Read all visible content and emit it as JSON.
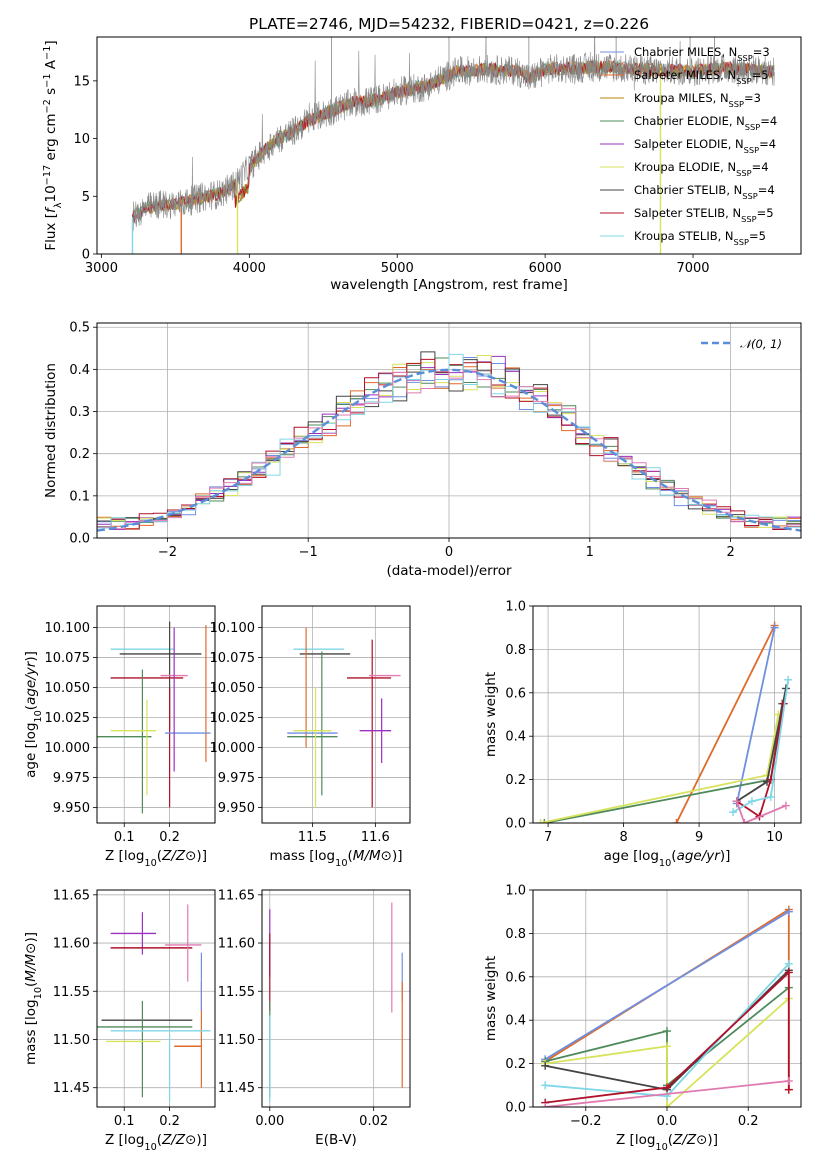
{
  "figure": {
    "title": "PLATE=2746, MJD=54232, FIBERID=0421, z=0.226"
  },
  "colors": {
    "Chabrier MILES": "#6f8fe0",
    "Salpeter MILES": "#e06a2a",
    "Kroupa MILES": "#b8860b",
    "Chabrier ELODIE": "#4f8a5a",
    "Salpeter ELODIE": "#9b30c0",
    "Kroupa ELODIE": "#d7e35a",
    "Chabrier STELIB": "#444444",
    "Salpeter STELIB": "#b0102a",
    "Kroupa STELIB": "#7fd6e6",
    "pink": "#e07ab0",
    "data": "#888888",
    "gaussian": "#5b8ed8"
  },
  "chart_data": [
    {
      "id": "spectrum",
      "type": "line",
      "title": "PLATE=2746, MJD=54232, FIBERID=0421, z=0.226",
      "xlabel": "wavelength [Angstrom, rest frame]",
      "ylabel": "Flux [f_λ 10^-17 erg cm^-2 s^-1 A^-1]",
      "xlim": [
        2970,
        7730
      ],
      "ylim": [
        0,
        18.8
      ],
      "xticks": [
        3000,
        4000,
        5000,
        6000,
        7000
      ],
      "yticks": [
        0,
        5,
        10,
        15
      ],
      "grid": false,
      "legend_position": "right",
      "legend": [
        {
          "label": "Chabrier MILES, N",
          "sub": "SSP",
          "sup": "=3",
          "color": "Chabrier MILES"
        },
        {
          "label": "Salpeter MILES, N",
          "sub": "SSP",
          "sup": "=5",
          "color": "Salpeter MILES"
        },
        {
          "label": "Kroupa MILES, N",
          "sub": "SSP",
          "sup": "=3",
          "color": "Kroupa MILES"
        },
        {
          "label": "Chabrier ELODIE, N",
          "sub": "SSP",
          "sup": "=4",
          "color": "Chabrier ELODIE"
        },
        {
          "label": "Salpeter ELODIE, N",
          "sub": "SSP",
          "sup": "=4",
          "color": "Salpeter ELODIE"
        },
        {
          "label": "Kroupa ELODIE, N",
          "sub": "SSP",
          "sup": "=4",
          "color": "Kroupa ELODIE"
        },
        {
          "label": "Chabrier STELIB, N",
          "sub": "SSP",
          "sup": "=4",
          "color": "Chabrier STELIB"
        },
        {
          "label": "Salpeter STELIB, N",
          "sub": "SSP",
          "sup": "=5",
          "color": "Salpeter STELIB"
        },
        {
          "label": "Kroupa STELIB, N",
          "sub": "SSP",
          "sup": "=5",
          "color": "Kroupa STELIB"
        }
      ],
      "continuum": [
        [
          3210,
          3.2
        ],
        [
          3300,
          4.0
        ],
        [
          3400,
          4.3
        ],
        [
          3500,
          4.3
        ],
        [
          3600,
          4.6
        ],
        [
          3700,
          5.0
        ],
        [
          3800,
          5.2
        ],
        [
          3900,
          6.0
        ],
        [
          4000,
          7.5
        ],
        [
          4100,
          9.0
        ],
        [
          4200,
          10.0
        ],
        [
          4300,
          10.6
        ],
        [
          4400,
          11.6
        ],
        [
          4500,
          12.1
        ],
        [
          4600,
          12.6
        ],
        [
          4700,
          13.1
        ],
        [
          4800,
          13.2
        ],
        [
          4900,
          13.5
        ],
        [
          5000,
          14.0
        ],
        [
          5100,
          14.3
        ],
        [
          5200,
          14.5
        ],
        [
          5300,
          15.2
        ],
        [
          5400,
          15.8
        ],
        [
          5500,
          15.9
        ],
        [
          5600,
          16.0
        ],
        [
          5700,
          15.9
        ],
        [
          5800,
          15.9
        ],
        [
          5900,
          15.2
        ],
        [
          6000,
          16.0
        ],
        [
          6200,
          16.1
        ],
        [
          6400,
          16.2
        ],
        [
          6600,
          16.0
        ],
        [
          6800,
          15.9
        ],
        [
          7000,
          15.8
        ],
        [
          7200,
          16.1
        ],
        [
          7400,
          16.0
        ],
        [
          7550,
          15.8
        ]
      ],
      "model_start_wavelengths": [
        {
          "color": "Kroupa STELIB",
          "x": 3210
        },
        {
          "color": "Salpeter MILES",
          "x": 3540
        },
        {
          "color": "Kroupa ELODIE",
          "x": 3920
        },
        {
          "color": "Kroupa ELODIE",
          "x": 6780
        }
      ]
    },
    {
      "id": "residuals",
      "type": "bar",
      "xlabel": "(data-model)/error",
      "ylabel": "Normed distribution",
      "xlim": [
        -2.5,
        2.5
      ],
      "ylim": [
        0,
        0.51
      ],
      "xticks": [
        -2,
        -1,
        0,
        1,
        2
      ],
      "yticks": [
        0.0,
        0.1,
        0.2,
        0.3,
        0.4,
        0.5
      ],
      "grid": true,
      "bin_width": 0.1,
      "legend": [
        {
          "label": "𝒩(0, 1)",
          "color": "gaussian",
          "dashed": true
        }
      ],
      "legend_position": "upper-right",
      "histogram_colors": [
        "Chabrier MILES",
        "Salpeter MILES",
        "Chabrier ELODIE",
        "Salpeter ELODIE",
        "Kroupa ELODIE",
        "Chabrier STELIB",
        "Salpeter STELIB",
        "Kroupa STELIB",
        "pink"
      ]
    },
    {
      "id": "age-vs-Z",
      "type": "errorbar",
      "xlabel": "Z [log10(Z/Z⊙)]",
      "ylabel": "age  [log10(age/yr)]",
      "xlim": [
        0.04,
        0.3
      ],
      "ylim": [
        9.937,
        10.118
      ],
      "xticks": [
        0.1,
        0.2
      ],
      "yticks": [
        9.95,
        9.975,
        10.0,
        10.025,
        10.05,
        10.075,
        10.1
      ],
      "grid": true,
      "points": [
        {
          "color": "Kroupa STELIB",
          "x": 0.14,
          "xerr": 0.07,
          "y": 10.082,
          "yerr": 0.0
        },
        {
          "color": "Chabrier STELIB",
          "x": 0.18,
          "xerr": 0.09,
          "y": 10.078,
          "yerr": 0.0
        },
        {
          "color": "Chabrier STELIB",
          "x": 0.2,
          "xerr": 0.0,
          "y": 10.06,
          "yerr": 0.045
        },
        {
          "color": "Salpeter STELIB",
          "x": 0.15,
          "xerr": 0.08,
          "y": 10.058,
          "yerr": 0.0
        },
        {
          "color": "Salpeter STELIB",
          "x": 0.2,
          "xerr": 0.0,
          "y": 10.0,
          "yerr": 0.05
        },
        {
          "color": "pink",
          "x": 0.21,
          "xerr": 0.03,
          "y": 10.06,
          "yerr": 0.0
        },
        {
          "color": "Salpeter MILES",
          "x": 0.28,
          "xerr": 0.0,
          "y": 10.045,
          "yerr": 0.057
        },
        {
          "color": "Chabrier MILES",
          "x": 0.24,
          "xerr": 0.05,
          "y": 10.012,
          "yerr": 0.0
        },
        {
          "color": "Chabrier ELODIE",
          "x": 0.14,
          "xerr": 0.0,
          "y": 10.005,
          "yerr": 0.06
        },
        {
          "color": "Chabrier ELODIE",
          "x": 0.1,
          "xerr": 0.06,
          "y": 10.009,
          "yerr": 0.0
        },
        {
          "color": "Kroupa ELODIE",
          "x": 0.12,
          "xerr": 0.05,
          "y": 10.014,
          "yerr": 0.0
        },
        {
          "color": "Kroupa ELODIE",
          "x": 0.15,
          "xerr": 0.0,
          "y": 10.0,
          "yerr": 0.04
        },
        {
          "color": "Salpeter ELODIE",
          "x": 0.21,
          "xerr": 0.0,
          "y": 10.04,
          "yerr": 0.06
        }
      ]
    },
    {
      "id": "age-vs-mass",
      "type": "errorbar",
      "xlabel": "mass [log10(M/M⊙)]",
      "ylabel": "",
      "xlim": [
        11.42,
        11.655
      ],
      "ylim": [
        9.937,
        10.118
      ],
      "xticks": [
        11.5,
        11.6
      ],
      "yticks": [
        9.95,
        9.975,
        10.0,
        10.025,
        10.05,
        10.075,
        10.1
      ],
      "grid": true,
      "points": [
        {
          "color": "Kroupa STELIB",
          "x": 11.51,
          "xerr": 0.04,
          "y": 10.082,
          "yerr": 0.0
        },
        {
          "color": "Chabrier STELIB",
          "x": 11.52,
          "xerr": 0.04,
          "y": 10.078,
          "yerr": 0.0
        },
        {
          "color": "Salpeter MILES",
          "x": 11.49,
          "xerr": 0.0,
          "y": 10.05,
          "yerr": 0.05
        },
        {
          "color": "Chabrier ELODIE",
          "x": 11.515,
          "xerr": 0.0,
          "y": 10.02,
          "yerr": 0.06
        },
        {
          "color": "Salpeter STELIB",
          "x": 11.595,
          "xerr": 0.0,
          "y": 10.02,
          "yerr": 0.07
        },
        {
          "color": "Salpeter STELIB",
          "x": 11.59,
          "xerr": 0.035,
          "y": 10.058,
          "yerr": 0.0
        },
        {
          "color": "pink",
          "x": 11.615,
          "xerr": 0.025,
          "y": 10.06,
          "yerr": 0.0
        },
        {
          "color": "Salpeter ELODIE",
          "x": 11.61,
          "xerr": 0.0,
          "y": 10.014,
          "yerr": 0.027
        },
        {
          "color": "Salpeter ELODIE",
          "x": 11.6,
          "xerr": 0.025,
          "y": 10.014,
          "yerr": 0.0
        },
        {
          "color": "Chabrier MILES",
          "x": 11.5,
          "xerr": 0.04,
          "y": 10.012,
          "yerr": 0.0
        },
        {
          "color": "Kroupa ELODIE",
          "x": 11.5,
          "xerr": 0.03,
          "y": 10.014,
          "yerr": 0.0
        },
        {
          "color": "Chabrier ELODIE",
          "x": 11.5,
          "xerr": 0.04,
          "y": 10.009,
          "yerr": 0.0
        },
        {
          "color": "Kroupa ELODIE",
          "x": 11.505,
          "xerr": 0.0,
          "y": 10.0,
          "yerr": 0.05
        }
      ]
    },
    {
      "id": "weight-vs-age",
      "type": "line",
      "xlabel": "age  [log10(age/yr)]",
      "ylabel": "mass weight",
      "xlim": [
        6.8,
        10.35
      ],
      "ylim": [
        0,
        1
      ],
      "xticks": [
        7,
        8,
        9,
        10
      ],
      "yticks": [
        0.0,
        0.2,
        0.4,
        0.6,
        0.8,
        1.0
      ],
      "grid": true,
      "series": [
        {
          "color": "Salpeter MILES",
          "points": [
            [
              8.7,
              0.0
            ],
            [
              10.0,
              0.91
            ]
          ]
        },
        {
          "color": "Chabrier MILES",
          "points": [
            [
              9.5,
              0.09
            ],
            [
              10.0,
              0.9
            ]
          ]
        },
        {
          "color": "Chabrier ELODIE",
          "points": [
            [
              6.95,
              0.0
            ],
            [
              9.95,
              0.2
            ],
            [
              10.1,
              0.55
            ]
          ]
        },
        {
          "color": "Kroupa ELODIE",
          "points": [
            [
              6.9,
              0.0
            ],
            [
              9.9,
              0.22
            ],
            [
              10.05,
              0.5
            ]
          ]
        },
        {
          "color": "Chabrier STELIB",
          "points": [
            [
              9.5,
              0.1
            ],
            [
              9.9,
              0.19
            ],
            [
              10.15,
              0.62
            ]
          ]
        },
        {
          "color": "Salpeter STELIB",
          "points": [
            [
              9.5,
              0.1
            ],
            [
              9.8,
              0.03
            ],
            [
              9.95,
              0.2
            ],
            [
              10.12,
              0.55
            ]
          ]
        },
        {
          "color": "Kroupa STELIB",
          "points": [
            [
              9.45,
              0.05
            ],
            [
              9.7,
              0.1
            ],
            [
              9.95,
              0.12
            ],
            [
              10.18,
              0.66
            ]
          ]
        },
        {
          "color": "pink",
          "points": [
            [
              9.5,
              0.1
            ],
            [
              9.6,
              0.0
            ],
            [
              10.15,
              0.08
            ]
          ]
        }
      ]
    },
    {
      "id": "mass-vs-Z",
      "type": "errorbar",
      "xlabel": "Z [log10(Z/Z⊙)]",
      "ylabel": "mass [log10(M/M⊙)]",
      "xlim": [
        0.04,
        0.3
      ],
      "ylim": [
        11.43,
        11.655
      ],
      "xticks": [
        0.1,
        0.2
      ],
      "yticks": [
        11.45,
        11.5,
        11.55,
        11.6,
        11.65
      ],
      "grid": true,
      "points": [
        {
          "color": "Salpeter ELODIE",
          "x": 0.12,
          "xerr": 0.05,
          "y": 11.61,
          "yerr": 0.0
        },
        {
          "color": "Salpeter ELODIE",
          "x": 0.14,
          "xerr": 0.0,
          "y": 11.61,
          "yerr": 0.022
        },
        {
          "color": "Salpeter STELIB",
          "x": 0.16,
          "xerr": 0.09,
          "y": 11.595,
          "yerr": 0.0
        },
        {
          "color": "pink",
          "x": 0.23,
          "xerr": 0.04,
          "y": 11.598,
          "yerr": 0.0
        },
        {
          "color": "pink",
          "x": 0.24,
          "xerr": 0.0,
          "y": 11.6,
          "yerr": 0.04
        },
        {
          "color": "Salpeter MILES",
          "x": 0.27,
          "xerr": 0.0,
          "y": 11.505,
          "yerr": 0.055
        },
        {
          "color": "Salpeter MILES",
          "x": 0.24,
          "xerr": 0.03,
          "y": 11.493,
          "yerr": 0.0
        },
        {
          "color": "Chabrier MILES",
          "x": 0.27,
          "xerr": 0.0,
          "y": 11.56,
          "yerr": 0.03
        },
        {
          "color": "Chabrier STELIB",
          "x": 0.15,
          "xerr": 0.1,
          "y": 11.52,
          "yerr": 0.0
        },
        {
          "color": "Chabrier ELODIE",
          "x": 0.14,
          "xerr": 0.0,
          "y": 11.49,
          "yerr": 0.05
        },
        {
          "color": "Chabrier ELODIE",
          "x": 0.14,
          "xerr": 0.11,
          "y": 11.513,
          "yerr": 0.0
        },
        {
          "color": "Kroupa STELIB",
          "x": 0.18,
          "xerr": 0.11,
          "y": 11.509,
          "yerr": 0.0
        },
        {
          "color": "Kroupa ELODIE",
          "x": 0.12,
          "xerr": 0.06,
          "y": 11.498,
          "yerr": 0.0
        },
        {
          "color": "Kroupa STELIB",
          "x": 0.2,
          "xerr": 0.0,
          "y": 11.47,
          "yerr": 0.035
        }
      ]
    },
    {
      "id": "mass-vs-ebv",
      "type": "errorbar",
      "xlabel": "E(B-V)",
      "ylabel": "",
      "xlim": [
        -0.0015,
        0.027
      ],
      "ylim": [
        11.43,
        11.655
      ],
      "xticks": [
        0.0,
        0.02
      ],
      "yticks": [
        11.45,
        11.5,
        11.55,
        11.6,
        11.65
      ],
      "grid": true,
      "points": [
        {
          "color": "Salpeter ELODIE",
          "x": 0.0,
          "xerr": 0.0,
          "y": 11.6,
          "yerr": 0.035
        },
        {
          "color": "Salpeter STELIB",
          "x": 0.0,
          "xerr": 0.0,
          "y": 11.57,
          "yerr": 0.04
        },
        {
          "color": "Chabrier ELODIE",
          "x": 0.0,
          "xerr": 0.0,
          "y": 11.49,
          "yerr": 0.05
        },
        {
          "color": "Kroupa STELIB",
          "x": 0.0,
          "xerr": 0.0,
          "y": 11.48,
          "yerr": 0.045
        },
        {
          "color": "pink",
          "x": 0.0235,
          "xerr": 0.0,
          "y": 11.585,
          "yerr": 0.057
        },
        {
          "color": "Chabrier MILES",
          "x": 0.0255,
          "xerr": 0.0,
          "y": 11.565,
          "yerr": 0.025
        },
        {
          "color": "Salpeter MILES",
          "x": 0.0255,
          "xerr": 0.0,
          "y": 11.505,
          "yerr": 0.055
        }
      ]
    },
    {
      "id": "weight-vs-Z",
      "type": "line",
      "xlabel": "Z [log10(Z/Z⊙)]",
      "ylabel": "mass weight",
      "xlim": [
        -0.33,
        0.33
      ],
      "ylim": [
        0,
        1
      ],
      "xticks": [
        -0.2,
        0.0,
        0.2
      ],
      "yticks": [
        0.0,
        0.2,
        0.4,
        0.6,
        0.8,
        1.0
      ],
      "grid": true,
      "series": [
        {
          "color": "Salpeter MILES",
          "points": [
            [
              -0.3,
              0.21
            ],
            [
              0.3,
              0.91
            ],
            [
              0.3,
              0.08
            ]
          ]
        },
        {
          "color": "Chabrier MILES",
          "points": [
            [
              -0.3,
              0.22
            ],
            [
              0.3,
              0.9
            ]
          ]
        },
        {
          "color": "Chabrier ELODIE",
          "points": [
            [
              -0.3,
              0.21
            ],
            [
              0.0,
              0.35
            ],
            [
              0.0,
              0.1
            ],
            [
              0.3,
              0.55
            ]
          ]
        },
        {
          "color": "Kroupa ELODIE",
          "points": [
            [
              -0.3,
              0.2
            ],
            [
              0.0,
              0.28
            ],
            [
              0.0,
              0.0
            ],
            [
              0.3,
              0.5
            ]
          ]
        },
        {
          "color": "Chabrier STELIB",
          "points": [
            [
              -0.3,
              0.19
            ],
            [
              0.0,
              0.08
            ],
            [
              0.3,
              0.63
            ]
          ]
        },
        {
          "color": "Kroupa STELIB",
          "points": [
            [
              -0.3,
              0.1
            ],
            [
              0.0,
              0.05
            ],
            [
              0.3,
              0.66
            ]
          ]
        },
        {
          "color": "Salpeter STELIB",
          "points": [
            [
              -0.3,
              0.02
            ],
            [
              0.0,
              0.09
            ],
            [
              0.3,
              0.62
            ],
            [
              0.3,
              0.08
            ]
          ]
        },
        {
          "color": "pink",
          "points": [
            [
              -0.3,
              0.0
            ],
            [
              0.3,
              0.12
            ]
          ]
        }
      ]
    }
  ]
}
